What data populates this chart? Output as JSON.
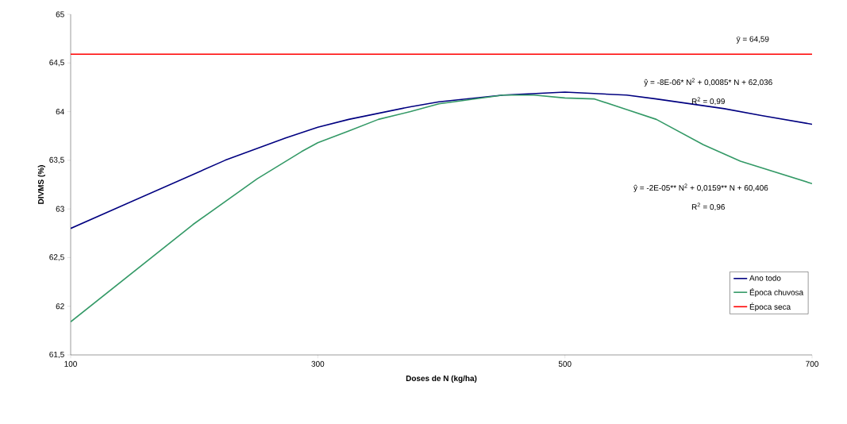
{
  "chart_data": {
    "type": "line",
    "xlabel": "Doses de N (kg/ha)",
    "ylabel": "DIVMS (%)",
    "xlim": [
      100,
      700
    ],
    "ylim": [
      61.5,
      65
    ],
    "xticks": [
      100,
      300,
      500,
      700
    ],
    "yticks": [
      {
        "value": 61.5,
        "label": "61,5"
      },
      {
        "value": 62,
        "label": "62"
      },
      {
        "value": 62.5,
        "label": "62,5"
      },
      {
        "value": 63,
        "label": "63"
      },
      {
        "value": 63.5,
        "label": "63,5"
      },
      {
        "value": 64,
        "label": "64"
      },
      {
        "value": 64.5,
        "label": "64,5"
      },
      {
        "value": 65,
        "label": "65"
      }
    ],
    "grid": false,
    "legend": "bottom right",
    "marker": "none",
    "line_style": "solid",
    "series": [
      {
        "name": "Ano todo",
        "color": "#000080",
        "x": [
          100,
          225,
          274,
          300,
          325,
          375,
          398,
          450,
          500,
          550,
          574,
          629,
          659,
          700
        ],
        "values": [
          62.8,
          63.5,
          63.73,
          63.84,
          63.92,
          64.05,
          64.1,
          64.17,
          64.2,
          64.17,
          64.13,
          64.03,
          63.96,
          63.87
        ]
      },
      {
        "name": "Época chuvosa",
        "color": "#339966",
        "x": [
          100,
          199,
          251,
          287,
          300,
          325,
          349,
          375,
          398,
          450,
          475,
          500,
          524,
          550,
          574,
          612,
          642,
          700
        ],
        "values": [
          61.84,
          62.84,
          63.31,
          63.59,
          63.68,
          63.8,
          63.92,
          64.0,
          64.08,
          64.17,
          64.17,
          64.14,
          64.13,
          64.02,
          63.92,
          63.66,
          63.49,
          63.26
        ]
      },
      {
        "name": "Época seca",
        "color": "#ff0000",
        "x": [
          100,
          700
        ],
        "values": [
          64.59,
          64.59
        ]
      }
    ],
    "annotations": [
      "ȳ = 64,59",
      "ŷ = -8E-06* N$^{2}$ + 0,0085* N + 62,036",
      "R$^{2}$ = 0,99",
      "ŷ =  -2E-05** N$^{2}$ + 0,0159** N + 60,406",
      "R$^{2}$ = 0,96"
    ]
  }
}
